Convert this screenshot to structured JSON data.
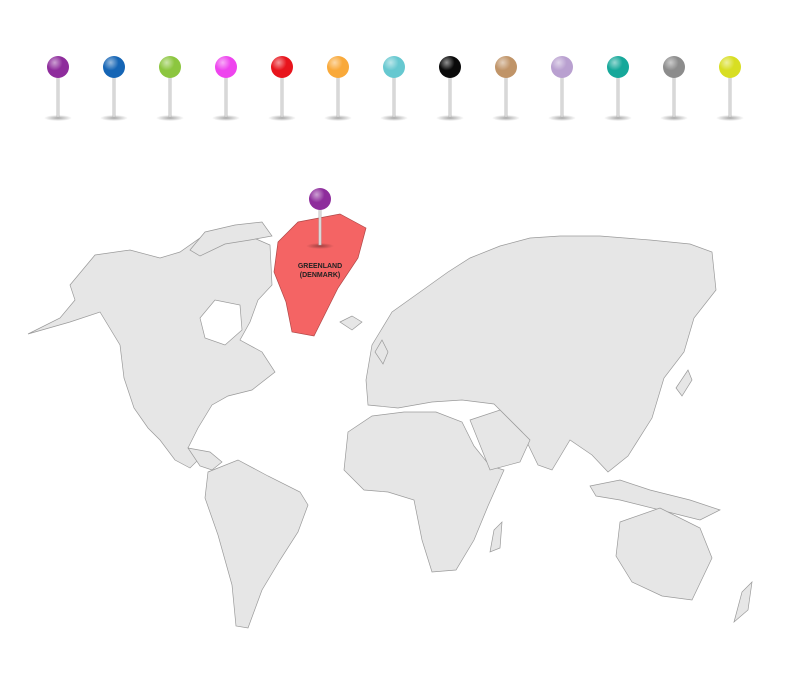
{
  "pin_palette": [
    {
      "color": "#8e2c9c",
      "name": "purple"
    },
    {
      "color": "#1565b5",
      "name": "blue"
    },
    {
      "color": "#8cc63f",
      "name": "green"
    },
    {
      "color": "#ee44ee",
      "name": "magenta"
    },
    {
      "color": "#e8141c",
      "name": "red"
    },
    {
      "color": "#f9a93a",
      "name": "orange"
    },
    {
      "color": "#66c8d0",
      "name": "light-blue"
    },
    {
      "color": "#0a0a0a",
      "name": "black"
    },
    {
      "color": "#c09468",
      "name": "tan"
    },
    {
      "color": "#b9a0d0",
      "name": "lavender"
    },
    {
      "color": "#16a89a",
      "name": "teal"
    },
    {
      "color": "#8c8c8c",
      "name": "gray"
    },
    {
      "color": "#d8de22",
      "name": "yellow"
    }
  ],
  "map": {
    "land_color": "#e6e6e6",
    "highlight": {
      "region": "Greenland",
      "label_line1": "GREENLAND",
      "label_line2": "(DENMARK)",
      "color": "#f46464",
      "pin_color": "#8e2c9c"
    }
  }
}
